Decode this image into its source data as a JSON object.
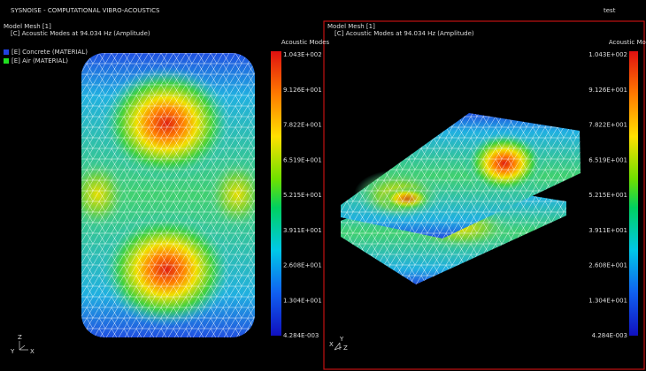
{
  "header": {
    "title": "SYSNOISE - COMPUTATIONAL VIBRO-ACOUSTICS",
    "user": "test"
  },
  "viewports": [
    {
      "model": "Model Mesh [1]",
      "result": "[C]  Acoustic Modes at 94.034 Hz (Amplitude)",
      "legend": [
        "[E] Concrete (MATERIAL)",
        "[E] Air (MATERIAL)"
      ],
      "scale_title": "Acoustic Modes",
      "scale_labels": [
        "1.043E+002",
        "9.126E+001",
        "7.822E+001",
        "6.519E+001",
        "5.215E+001",
        "3.911E+001",
        "2.608E+001",
        "1.304E+001",
        "4.284E-003"
      ],
      "triad": [
        "Z",
        "Y",
        "X"
      ]
    },
    {
      "model": "Model Mesh [1]",
      "result": "[C]  Acoustic Modes at 94.034 Hz (Amplitude)",
      "scale_title": "Acoustic Modes",
      "scale_labels": [
        "1.043E+002",
        "9.126E+001",
        "7.822E+001",
        "6.519E+001",
        "5.215E+001",
        "3.911E+001",
        "2.608E+001",
        "1.304E+001",
        "4.284E-003"
      ],
      "triad": [
        "X",
        "Y",
        "Z"
      ]
    }
  ]
}
